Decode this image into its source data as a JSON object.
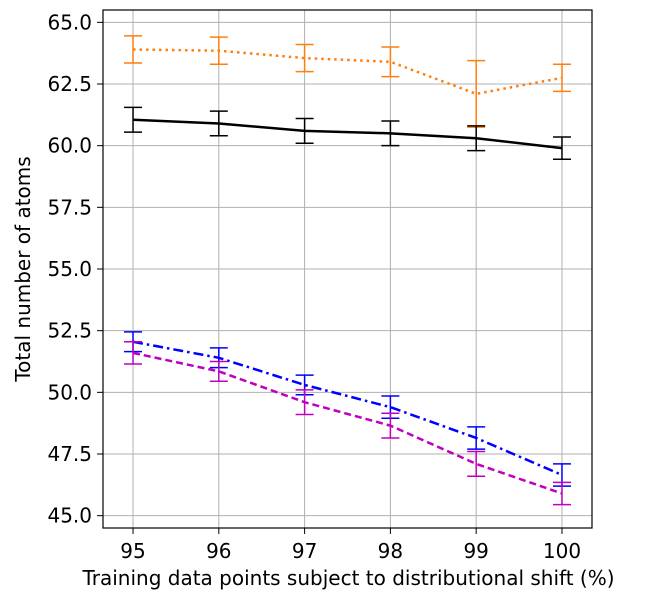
{
  "chart_data": {
    "type": "line",
    "xlabel": "Training data points subject to distributional shift (%)",
    "ylabel": "Total number of atoms",
    "x": [
      95,
      96,
      97,
      98,
      99,
      100
    ],
    "x_tick_labels": [
      "95",
      "96",
      "97",
      "98",
      "99",
      "100"
    ],
    "ylim": [
      44.5,
      65.5
    ],
    "y_ticks": [
      45.0,
      47.5,
      50.0,
      52.5,
      55.0,
      57.5,
      60.0,
      62.5,
      65.0
    ],
    "y_tick_labels": [
      "45.0",
      "47.5",
      "50.0",
      "52.5",
      "55.0",
      "57.5",
      "60.0",
      "62.5",
      "65.0"
    ],
    "grid": true,
    "series": [
      {
        "color": "#ff7f0e",
        "linestyle": "dotted",
        "values": [
          63.9,
          63.85,
          63.55,
          63.4,
          62.1,
          62.75
        ],
        "errors": [
          0.55,
          0.55,
          0.55,
          0.6,
          1.35,
          0.55
        ]
      },
      {
        "color": "#000000",
        "linestyle": "solid",
        "values": [
          61.05,
          60.9,
          60.6,
          60.5,
          60.3,
          59.9
        ],
        "errors": [
          0.5,
          0.5,
          0.5,
          0.5,
          0.5,
          0.45
        ]
      },
      {
        "color": "#0000ff",
        "linestyle": "dashdot",
        "values": [
          52.05,
          51.4,
          50.3,
          49.4,
          48.15,
          46.65
        ],
        "errors": [
          0.4,
          0.4,
          0.4,
          0.45,
          0.45,
          0.45
        ]
      },
      {
        "color": "#bf00bf",
        "linestyle": "dashed",
        "values": [
          51.6,
          50.85,
          49.6,
          48.65,
          47.1,
          45.9
        ],
        "errors": [
          0.45,
          0.4,
          0.5,
          0.5,
          0.5,
          0.45
        ]
      }
    ]
  }
}
